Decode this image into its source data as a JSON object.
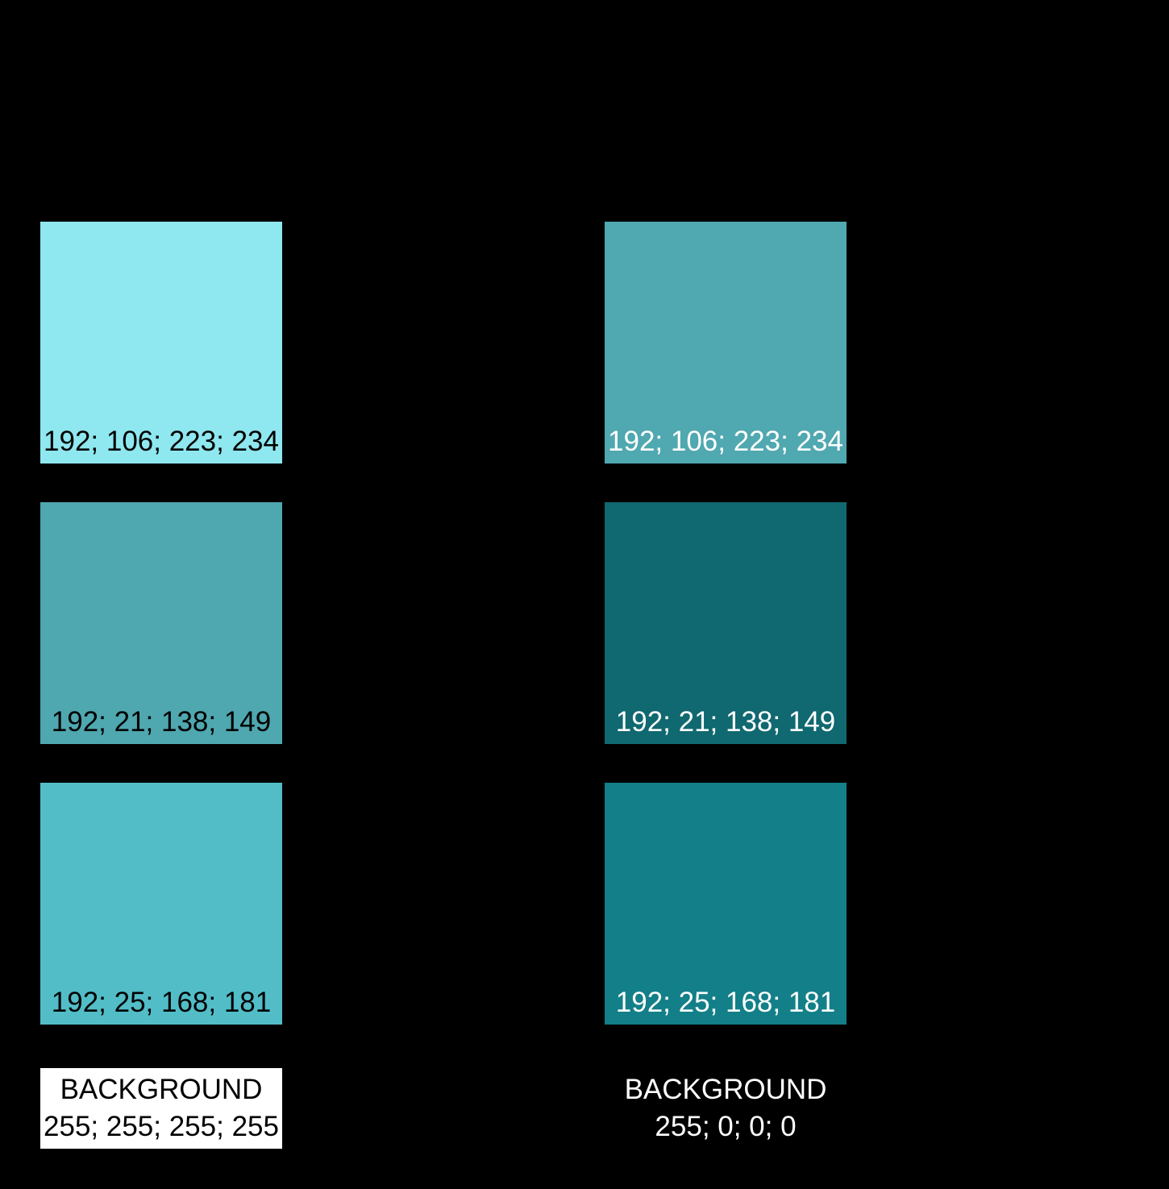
{
  "canvas": {
    "background": "#000000"
  },
  "columns": [
    {
      "id": "on-white-background",
      "swatches": [
        {
          "label": "192; 106; 223; 234",
          "fill": "#8FE7EF",
          "label_color": "#000000"
        },
        {
          "label": "192; 21; 138; 149",
          "fill": "#4FA7AF",
          "label_color": "#000000"
        },
        {
          "label": "192; 25; 168; 181",
          "fill": "#52BDC7",
          "label_color": "#000000"
        }
      ],
      "background_card": {
        "title": "BACKGROUND",
        "value": "255; 255; 255; 255",
        "fill": "#FFFFFF",
        "text_color": "#000000"
      }
    },
    {
      "id": "on-black-background",
      "swatches": [
        {
          "label": "192; 106; 223; 234",
          "fill": "#50A8B0",
          "label_color": "#FFFFFF"
        },
        {
          "label": "192; 21; 138; 149",
          "fill": "#106870",
          "label_color": "#FFFFFF"
        },
        {
          "label": "192; 25; 168; 181",
          "fill": "#137F88",
          "label_color": "#FFFFFF"
        }
      ],
      "background_card": {
        "title": "BACKGROUND",
        "value": "255; 0; 0; 0",
        "fill": "transparent",
        "text_color": "#FFFFFF"
      }
    }
  ]
}
